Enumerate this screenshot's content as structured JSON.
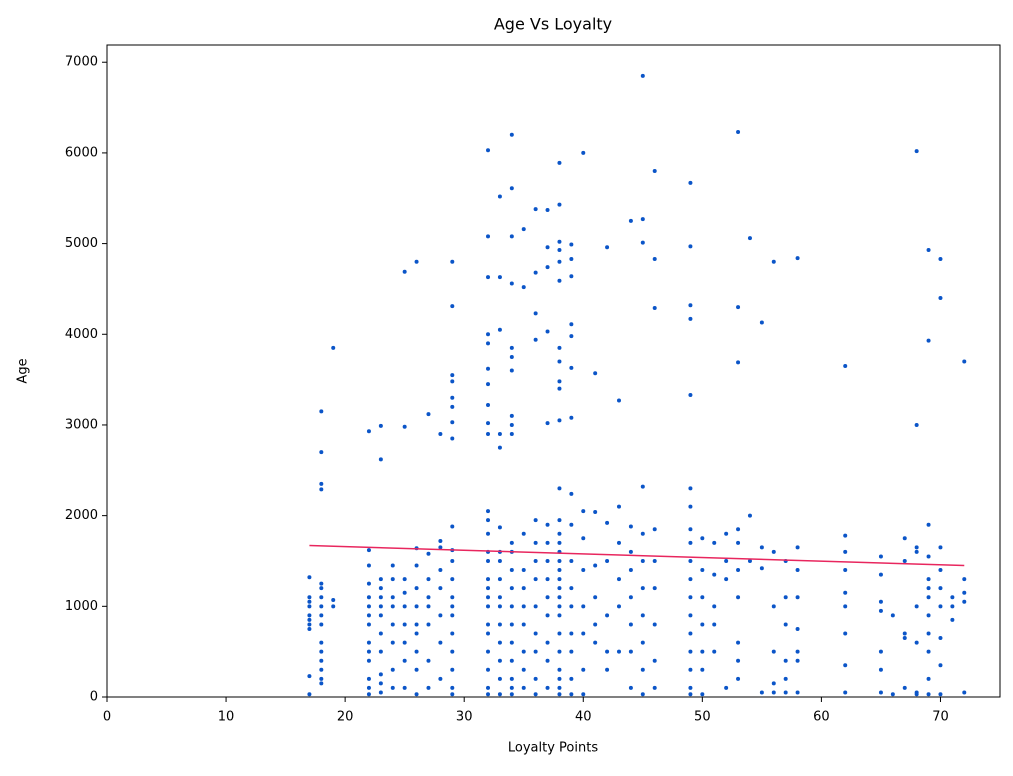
{
  "chart_data": {
    "type": "scatter",
    "title": "Age Vs Loyalty",
    "x_label": "Loyalty Points",
    "y_label": "Age",
    "xlim": [
      0,
      75
    ],
    "ylim": [
      0,
      7190
    ],
    "xticks": [
      0,
      10,
      20,
      30,
      40,
      50,
      60,
      70
    ],
    "yticks": [
      0,
      1000,
      2000,
      3000,
      4000,
      5000,
      6000,
      7000
    ],
    "series": [
      {
        "color": "#0b55c8",
        "x": [
          17,
          17,
          17,
          17,
          17,
          17,
          17,
          17,
          17,
          17,
          18,
          18,
          18,
          18,
          18,
          18,
          18,
          18,
          18,
          18,
          18,
          18,
          18,
          18,
          18,
          18,
          19,
          19,
          19,
          22,
          22,
          22,
          22,
          22,
          22,
          22,
          22,
          22,
          22,
          22,
          22,
          22,
          22,
          23,
          23,
          23,
          23,
          23,
          23,
          23,
          23,
          23,
          23,
          23,
          23,
          24,
          24,
          24,
          24,
          24,
          24,
          24,
          24,
          25,
          25,
          25,
          25,
          25,
          25,
          25,
          25,
          25,
          26,
          26,
          26,
          26,
          26,
          26,
          26,
          26,
          26,
          26,
          27,
          27,
          27,
          27,
          27,
          27,
          27,
          27,
          28,
          28,
          28,
          28,
          28,
          28,
          28,
          28,
          29,
          29,
          29,
          29,
          29,
          29,
          29,
          29,
          29,
          29,
          29,
          29,
          29,
          29,
          29,
          29,
          29,
          29,
          29,
          29,
          32,
          32,
          32,
          32,
          32,
          32,
          32,
          32,
          32,
          32,
          32,
          32,
          32,
          32,
          32,
          32,
          32,
          32,
          32,
          32,
          32,
          32,
          32,
          32,
          32,
          33,
          33,
          33,
          33,
          33,
          33,
          33,
          33,
          33,
          33,
          33,
          33,
          33,
          33,
          33,
          33,
          34,
          34,
          34,
          34,
          34,
          34,
          34,
          34,
          34,
          34,
          34,
          34,
          34,
          34,
          34,
          34,
          34,
          34,
          34,
          34,
          34,
          35,
          35,
          35,
          35,
          35,
          35,
          35,
          35,
          35,
          35,
          36,
          36,
          36,
          36,
          36,
          36,
          36,
          36,
          36,
          36,
          36,
          36,
          36,
          37,
          37,
          37,
          37,
          37,
          37,
          37,
          37,
          37,
          37,
          37,
          37,
          37,
          37,
          38,
          38,
          38,
          38,
          38,
          38,
          38,
          38,
          38,
          38,
          38,
          38,
          38,
          38,
          38,
          38,
          38,
          38,
          38,
          38,
          38,
          38,
          38,
          38,
          38,
          38,
          38,
          38,
          38,
          39,
          39,
          39,
          39,
          39,
          39,
          39,
          39,
          39,
          39,
          39,
          39,
          39,
          39,
          39,
          39,
          40,
          40,
          40,
          40,
          40,
          40,
          40,
          40,
          41,
          41,
          41,
          41,
          41,
          41,
          42,
          42,
          42,
          42,
          42,
          42,
          43,
          43,
          43,
          43,
          43,
          43,
          44,
          44,
          44,
          44,
          44,
          44,
          44,
          44,
          45,
          45,
          45,
          45,
          45,
          45,
          45,
          45,
          45,
          45,
          45,
          46,
          46,
          46,
          46,
          46,
          46,
          46,
          46,
          46,
          49,
          49,
          49,
          49,
          49,
          49,
          49,
          49,
          49,
          49,
          49,
          49,
          49,
          49,
          49,
          49,
          49,
          49,
          50,
          50,
          50,
          50,
          50,
          50,
          50,
          51,
          51,
          51,
          51,
          51,
          52,
          52,
          52,
          52,
          53,
          53,
          53,
          53,
          53,
          53,
          53,
          53,
          53,
          53,
          54,
          54,
          54,
          55,
          55,
          55,
          55,
          56,
          56,
          56,
          56,
          56,
          56,
          57,
          57,
          57,
          57,
          57,
          57,
          58,
          58,
          58,
          58,
          58,
          58,
          58,
          58,
          62,
          62,
          62,
          62,
          62,
          62,
          62,
          62,
          62,
          65,
          65,
          65,
          65,
          65,
          65,
          65,
          66,
          66,
          67,
          67,
          67,
          67,
          67,
          68,
          68,
          68,
          68,
          68,
          68,
          68,
          68,
          69,
          69,
          69,
          69,
          69,
          69,
          69,
          69,
          69,
          69,
          69,
          69,
          70,
          70,
          70,
          70,
          70,
          70,
          70,
          70,
          70,
          71,
          71,
          71,
          72,
          72,
          72,
          72,
          72
        ],
        "values": [
          30,
          230,
          750,
          800,
          850,
          900,
          1000,
          1050,
          1100,
          1320,
          150,
          200,
          300,
          400,
          500,
          600,
          800,
          900,
          1000,
          1100,
          1200,
          1250,
          2290,
          2350,
          2700,
          3150,
          1000,
          1070,
          3850,
          30,
          100,
          200,
          400,
          500,
          600,
          800,
          900,
          1000,
          1100,
          1250,
          1450,
          1620,
          2930,
          50,
          150,
          250,
          500,
          700,
          900,
          1000,
          1100,
          1200,
          1300,
          2620,
          2990,
          100,
          300,
          600,
          800,
          1000,
          1100,
          1300,
          1450,
          100,
          400,
          600,
          800,
          1000,
          1150,
          1300,
          2980,
          4690,
          30,
          300,
          500,
          700,
          800,
          1000,
          1200,
          1450,
          1640,
          4800,
          100,
          400,
          800,
          1000,
          1100,
          1300,
          1580,
          3120,
          200,
          600,
          900,
          1200,
          1400,
          1650,
          1720,
          2900,
          30,
          100,
          300,
          500,
          700,
          900,
          1000,
          1100,
          1300,
          1500,
          1620,
          1880,
          2850,
          3030,
          3200,
          3300,
          3480,
          3550,
          4310,
          4800,
          30,
          100,
          300,
          500,
          700,
          800,
          1000,
          1100,
          1200,
          1300,
          1500,
          1600,
          1800,
          1950,
          2050,
          2900,
          3020,
          3220,
          3450,
          3620,
          3900,
          4000,
          4630,
          5080,
          6030,
          30,
          200,
          400,
          600,
          800,
          1000,
          1100,
          1300,
          1500,
          1600,
          1870,
          2750,
          2900,
          4050,
          4630,
          5520,
          30,
          100,
          200,
          400,
          600,
          800,
          1000,
          1200,
          1400,
          1600,
          1700,
          2900,
          3000,
          3100,
          3600,
          3750,
          3850,
          4560,
          5080,
          5610,
          6200,
          100,
          300,
          500,
          800,
          1000,
          1200,
          1400,
          1800,
          4520,
          5160,
          30,
          200,
          500,
          700,
          1000,
          1300,
          1500,
          1700,
          1950,
          3940,
          4230,
          4680,
          5380,
          100,
          400,
          600,
          900,
          1100,
          1300,
          1500,
          1700,
          1900,
          3020,
          4030,
          4740,
          4960,
          5370,
          30,
          100,
          200,
          300,
          500,
          700,
          900,
          1000,
          1100,
          1200,
          1300,
          1400,
          1500,
          1600,
          1700,
          1800,
          1950,
          2300,
          3050,
          3400,
          3480,
          3700,
          3850,
          4590,
          4800,
          4930,
          5020,
          5430,
          5890,
          30,
          200,
          500,
          700,
          1000,
          1200,
          1500,
          1900,
          2240,
          3080,
          3630,
          3980,
          4110,
          4640,
          4830,
          4990,
          30,
          300,
          700,
          1000,
          1400,
          1750,
          2050,
          6000,
          600,
          800,
          1100,
          1450,
          2040,
          3570,
          300,
          500,
          900,
          1500,
          1920,
          4960,
          500,
          1000,
          1300,
          1700,
          2100,
          3270,
          100,
          500,
          800,
          1100,
          1400,
          1600,
          1880,
          5250,
          30,
          300,
          600,
          900,
          1200,
          1500,
          1800,
          2320,
          5010,
          5270,
          6850,
          100,
          400,
          800,
          1200,
          1500,
          1850,
          4290,
          4830,
          5800,
          30,
          100,
          300,
          500,
          700,
          900,
          1100,
          1300,
          1500,
          1700,
          1850,
          2100,
          2300,
          3330,
          4170,
          4320,
          4970,
          5670,
          30,
          300,
          500,
          800,
          1100,
          1400,
          1750,
          500,
          800,
          1000,
          1350,
          1700,
          100,
          1300,
          1500,
          1800,
          200,
          400,
          600,
          1100,
          1400,
          1700,
          1850,
          3690,
          4300,
          6230,
          1500,
          2000,
          5060,
          50,
          1420,
          1650,
          4130,
          50,
          150,
          500,
          1000,
          1600,
          4800,
          50,
          200,
          400,
          800,
          1100,
          1500,
          50,
          400,
          500,
          750,
          1100,
          1400,
          1650,
          4840,
          50,
          350,
          700,
          1000,
          1150,
          1400,
          1600,
          1780,
          3650,
          50,
          300,
          500,
          950,
          1050,
          1350,
          1550,
          30,
          900,
          100,
          650,
          700,
          1500,
          1750,
          30,
          50,
          600,
          1000,
          1600,
          1650,
          3000,
          6020,
          30,
          200,
          500,
          700,
          900,
          1100,
          1200,
          1300,
          1550,
          1900,
          3930,
          4930,
          30,
          350,
          650,
          1000,
          1200,
          1400,
          1650,
          4400,
          4830,
          850,
          1000,
          1100,
          50,
          1050,
          1150,
          1300,
          3700
        ]
      }
    ],
    "trend_line": {
      "color": "#e8265e",
      "x": [
        17,
        72
      ],
      "values": [
        1670,
        1450
      ]
    }
  }
}
